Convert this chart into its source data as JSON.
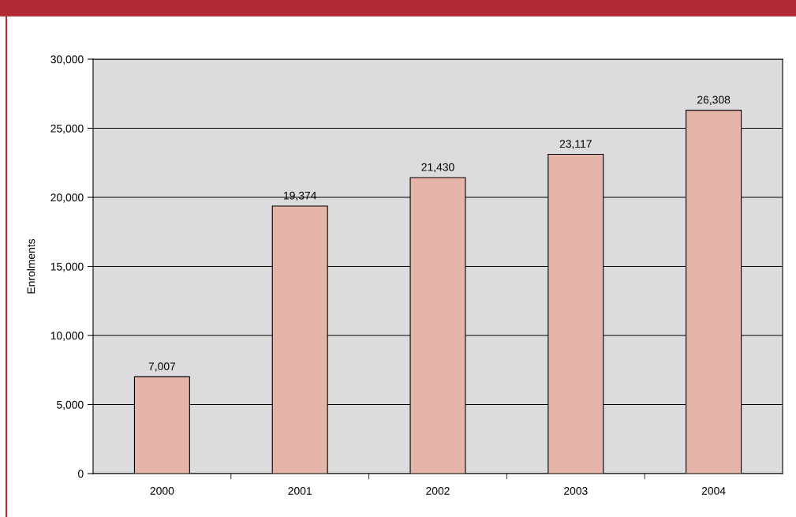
{
  "chart_data": {
    "type": "bar",
    "ylabel": "Enrolments",
    "categories": [
      "2000",
      "2001",
      "2002",
      "2003",
      "2004"
    ],
    "values": [
      7007,
      19374,
      21430,
      23117,
      26308
    ],
    "value_labels": [
      "7,007",
      "19,374",
      "21,430",
      "23,117",
      "26,308"
    ],
    "color": "#e6b5aa",
    "ylim": [
      0,
      30000
    ],
    "yticks": [
      {
        "value": 0,
        "label": "0"
      },
      {
        "value": 5000,
        "label": "5,000"
      },
      {
        "value": 10000,
        "label": "10,000"
      },
      {
        "value": 15000,
        "label": "15,000"
      },
      {
        "value": 20000,
        "label": "20,000"
      },
      {
        "value": 25000,
        "label": "25,000"
      },
      {
        "value": 30000,
        "label": "30,000"
      }
    ],
    "grid": "y"
  }
}
